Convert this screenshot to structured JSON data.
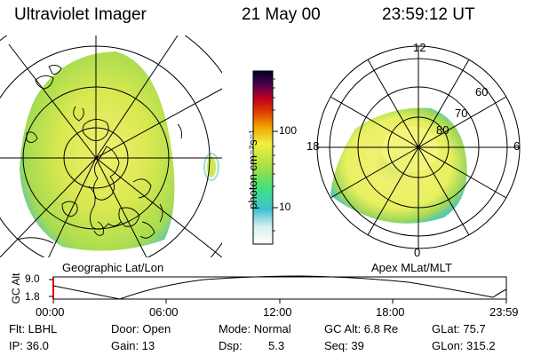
{
  "header": {
    "instrument": "Ultraviolet Imager",
    "date": "21 May 00",
    "time": "23:59:12 UT"
  },
  "colors": {
    "aurora_outer": "#6fd0a0",
    "aurora_mid": "#c8e040",
    "aurora_core": "#f0f070",
    "line": "#000000",
    "altitude_marker": "#e00000"
  },
  "geo_panel": {
    "label": "Geographic Lat/Lon",
    "icons": [
      "coastline-map-icon",
      "lat-lon-grid-icon"
    ]
  },
  "colorbar": {
    "unit_label": "photon cm⁻²s⁻¹",
    "tick_100": "100",
    "tick_10": "10",
    "stops": [
      "#ffffff",
      "#40c0d0",
      "#40e080",
      "#c0e040",
      "#f0f040",
      "#f0a000",
      "#e04000",
      "#c00020",
      "#500050",
      "#000020"
    ]
  },
  "mag_panel": {
    "label": "Apex MLat/MLT",
    "mlt_12": "12",
    "mlt_18": "18",
    "mlt_6": "6",
    "mlt_0": "0",
    "mlat_60": "60",
    "mlat_70": "70",
    "mlat_80": "80"
  },
  "altitude_plot": {
    "ylabel": "GC Alt",
    "ytick_max": "9.0",
    "ytick_min": "1.8",
    "xticks": [
      "00:00",
      "06:00",
      "12:00",
      "18:00",
      "23:59"
    ]
  },
  "info": {
    "filter": "Flt: LBHL",
    "door": "Door: Open",
    "mode": "Mode: Normal",
    "gc_alt": "GC Alt: 6.8 Re",
    "glat": "GLat: 75.7",
    "ip": "IP: 36.0",
    "gain": "Gain: 13",
    "dsp_label": "Dsp:",
    "dsp_value": "5.3",
    "seq": "Seq: 39",
    "glon": "GLon: 315.2"
  }
}
